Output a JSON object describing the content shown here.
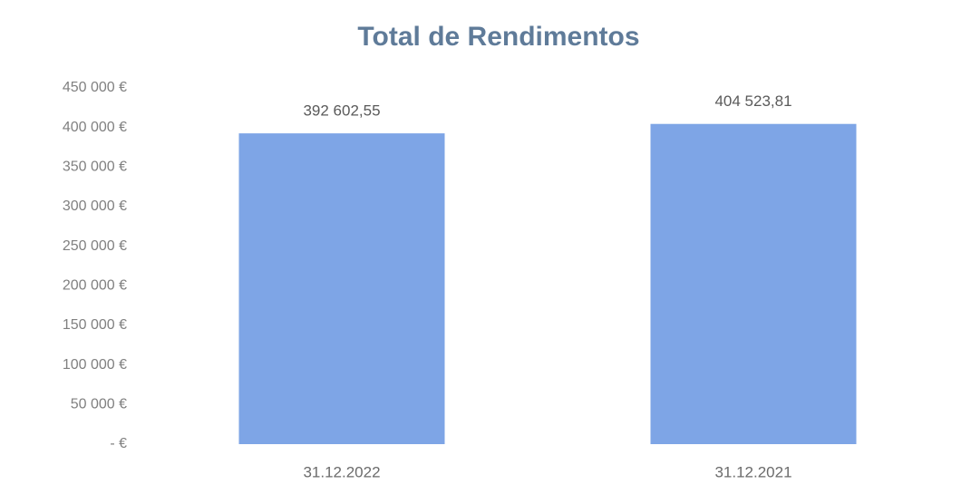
{
  "chart_data": {
    "type": "bar",
    "title": "Total de Rendimentos",
    "categories": [
      "31.12.2022",
      "31.12.2021"
    ],
    "values": [
      392602.55,
      404523.81
    ],
    "value_labels": [
      "392 602,55",
      "404 523,81"
    ],
    "color": "#7ea5e6",
    "ylim": [
      0,
      450000
    ],
    "yticks": [
      {
        "value": 0,
        "label": "-  €"
      },
      {
        "value": 50000,
        "label": "50 000 €"
      },
      {
        "value": 100000,
        "label": "100 000 €"
      },
      {
        "value": 150000,
        "label": "150 000 €"
      },
      {
        "value": 200000,
        "label": "200 000 €"
      },
      {
        "value": 250000,
        "label": "250 000 €"
      },
      {
        "value": 300000,
        "label": "300 000 €"
      },
      {
        "value": 350000,
        "label": "350 000 €"
      },
      {
        "value": 400000,
        "label": "400 000 €"
      },
      {
        "value": 450000,
        "label": "450 000 €"
      }
    ],
    "grid": false
  }
}
